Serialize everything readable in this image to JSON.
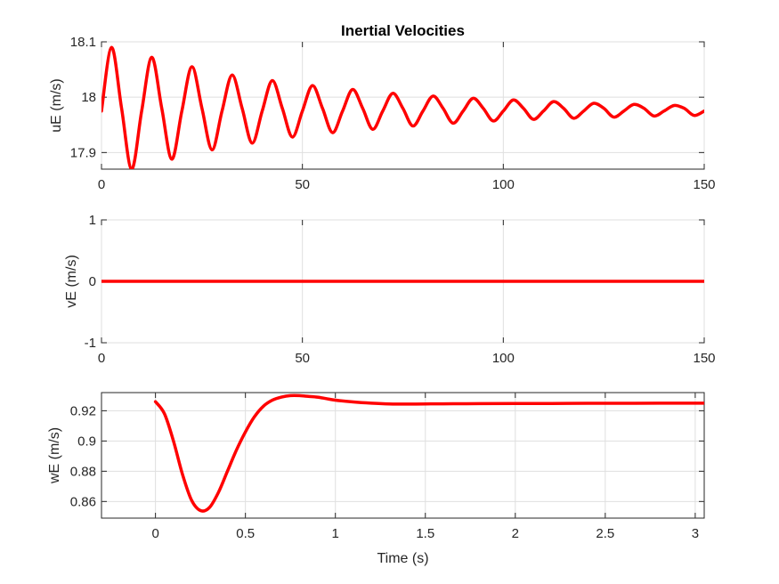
{
  "figure": {
    "background": "#ffffff"
  },
  "chart_data": [
    {
      "type": "line",
      "title": "Inertial Velocities",
      "xlabel": "",
      "ylabel": "uE (m/s)",
      "xlim": [
        0,
        150
      ],
      "ylim": [
        17.87,
        18.1
      ],
      "xticks": [
        0,
        50,
        100,
        150
      ],
      "yticks": [
        17.9,
        18,
        18.1
      ],
      "xtick_labels": [
        "0",
        "50",
        "100",
        "150"
      ],
      "ytick_labels": [
        "17.9",
        "18",
        "18.1"
      ],
      "grid": true,
      "series": [
        {
          "color": "#ff0000",
          "x": [
            0,
            2.5,
            5,
            7.5,
            10,
            12.5,
            15,
            17.5,
            20,
            22.5,
            25,
            27.5,
            30,
            32.5,
            35,
            37.5,
            40,
            42.5,
            45,
            47.5,
            50,
            52.5,
            55,
            57.5,
            60,
            62.5,
            65,
            67.5,
            70,
            72.5,
            75,
            77.5,
            80,
            82.5,
            85,
            87.5,
            90,
            92.5,
            95,
            97.5,
            100,
            102.5,
            105,
            107.5,
            110,
            112.5,
            115,
            117.5,
            120,
            122.5,
            125,
            127.5,
            130,
            132.5,
            135,
            137.5,
            140,
            142.5,
            145,
            147.5,
            150
          ],
          "y": [
            17.975,
            18.09,
            17.98,
            17.87,
            17.975,
            18.072,
            17.98,
            17.888,
            17.975,
            18.055,
            17.98,
            17.905,
            17.975,
            18.04,
            17.98,
            17.917,
            17.975,
            18.03,
            17.98,
            17.928,
            17.975,
            18.021,
            17.98,
            17.936,
            17.975,
            18.014,
            17.98,
            17.942,
            17.975,
            18.007,
            17.98,
            17.948,
            17.975,
            18.002,
            17.98,
            17.953,
            17.975,
            17.998,
            17.98,
            17.957,
            17.975,
            17.995,
            17.98,
            17.96,
            17.975,
            17.992,
            17.98,
            17.962,
            17.975,
            17.989,
            17.98,
            17.964,
            17.975,
            17.987,
            17.98,
            17.966,
            17.975,
            17.985,
            17.98,
            17.967,
            17.975
          ]
        }
      ]
    },
    {
      "type": "line",
      "title": "",
      "xlabel": "",
      "ylabel": "vE (m/s)",
      "xlim": [
        0,
        150
      ],
      "ylim": [
        -1,
        1
      ],
      "xticks": [
        0,
        50,
        100,
        150
      ],
      "yticks": [
        -1,
        0,
        1
      ],
      "xtick_labels": [
        "0",
        "50",
        "100",
        "150"
      ],
      "ytick_labels": [
        "-1",
        "0",
        "1"
      ],
      "grid": true,
      "series": [
        {
          "color": "#ff0000",
          "x": [
            0,
            150
          ],
          "y": [
            0,
            0
          ]
        }
      ]
    },
    {
      "type": "line",
      "title": "",
      "xlabel": "Time (s)",
      "ylabel": "wE (m/s)",
      "xlim": [
        -0.3,
        3.05
      ],
      "ylim": [
        0.849,
        0.932
      ],
      "xticks": [
        0,
        0.5,
        1,
        1.5,
        2,
        2.5,
        3
      ],
      "yticks": [
        0.86,
        0.88,
        0.9,
        0.92
      ],
      "xtick_labels": [
        "0",
        "0.5",
        "1",
        "1.5",
        "2",
        "2.5",
        "3"
      ],
      "ytick_labels": [
        "0.86",
        "0.88",
        "0.9",
        "0.92"
      ],
      "grid": true,
      "series": [
        {
          "color": "#ff0000",
          "x": [
            0,
            0.05,
            0.1,
            0.15,
            0.2,
            0.25,
            0.3,
            0.35,
            0.4,
            0.45,
            0.5,
            0.55,
            0.6,
            0.65,
            0.7,
            0.75,
            0.8,
            0.85,
            0.9,
            0.95,
            1.0,
            1.1,
            1.2,
            1.3,
            1.4,
            1.5,
            1.6,
            1.8,
            2.0,
            2.2,
            2.4,
            2.6,
            2.8,
            3.05
          ],
          "y": [
            0.926,
            0.918,
            0.9,
            0.878,
            0.861,
            0.854,
            0.856,
            0.866,
            0.88,
            0.894,
            0.906,
            0.916,
            0.923,
            0.927,
            0.929,
            0.93,
            0.93,
            0.9295,
            0.929,
            0.928,
            0.927,
            0.9258,
            0.925,
            0.9245,
            0.9244,
            0.9245,
            0.9246,
            0.9247,
            0.9248,
            0.9248,
            0.9249,
            0.9249,
            0.925,
            0.925
          ]
        }
      ]
    }
  ]
}
